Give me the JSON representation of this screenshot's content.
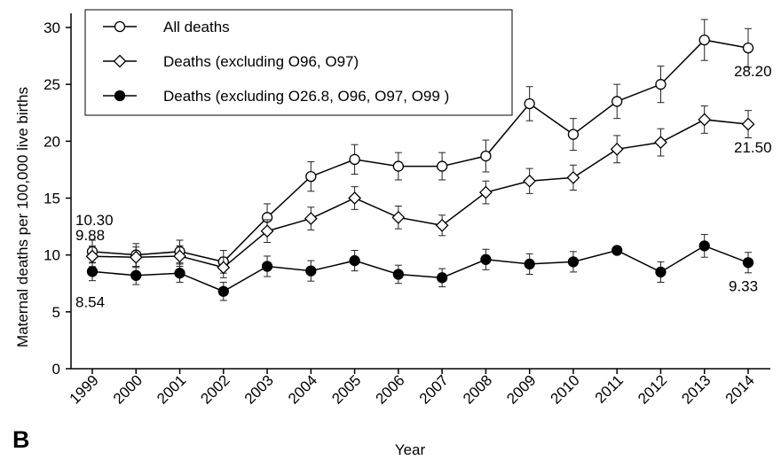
{
  "chart_data": {
    "type": "line",
    "panel_label": "B",
    "xlabel": "Year",
    "ylabel": "Maternal deaths per 100,000 live births",
    "ylim": [
      0,
      30
    ],
    "yticks": [
      "0",
      "5",
      "10",
      "15",
      "20",
      "25",
      "30"
    ],
    "categories": [
      "1999",
      "2000",
      "2001",
      "2002",
      "2003",
      "2004",
      "2005",
      "2006",
      "2007",
      "2008",
      "2009",
      "2010",
      "2011",
      "2012",
      "2013",
      "2014"
    ],
    "legend_position": "top-left",
    "grid": false,
    "series": [
      {
        "name": "All deaths",
        "marker": "open-circle",
        "values": [
          10.3,
          10.0,
          10.3,
          9.4,
          13.3,
          16.9,
          18.4,
          17.8,
          17.8,
          18.7,
          23.3,
          20.6,
          23.5,
          25.0,
          28.9,
          28.2
        ],
        "error": [
          1.0,
          1.0,
          1.0,
          1.0,
          1.2,
          1.3,
          1.3,
          1.2,
          1.2,
          1.4,
          1.5,
          1.4,
          1.5,
          1.6,
          1.8,
          1.7
        ]
      },
      {
        "name": "Deaths (excluding O96, O97)",
        "marker": "open-diamond",
        "values": [
          9.88,
          9.8,
          9.9,
          8.9,
          12.1,
          13.2,
          15.0,
          13.3,
          12.6,
          15.5,
          16.5,
          16.8,
          19.3,
          19.9,
          21.9,
          21.5
        ],
        "error": [
          0.9,
          0.9,
          0.9,
          0.9,
          1.0,
          1.0,
          1.0,
          1.0,
          0.9,
          1.0,
          1.1,
          1.1,
          1.2,
          1.2,
          1.2,
          1.2
        ]
      },
      {
        "name": "Deaths (excluding O26.8, O96, O97, O99 )",
        "marker": "filled-circle",
        "values": [
          8.54,
          8.2,
          8.4,
          6.8,
          9.0,
          8.6,
          9.5,
          8.3,
          8.0,
          9.6,
          9.2,
          9.4,
          10.4,
          8.5,
          10.8,
          9.33
        ],
        "error": [
          0.8,
          0.8,
          0.8,
          0.8,
          0.9,
          0.9,
          0.9,
          0.8,
          0.8,
          0.9,
          0.9,
          0.9,
          0.0,
          0.9,
          1.0,
          0.9
        ]
      }
    ],
    "annotations": [
      {
        "text": "10.30",
        "series": 0,
        "index": 0,
        "anchor": "above-left"
      },
      {
        "text": "9.88",
        "series": 1,
        "index": 0,
        "anchor": "above-left"
      },
      {
        "text": "8.54",
        "series": 2,
        "index": 0,
        "anchor": "below-left"
      },
      {
        "text": "28.20",
        "series": 0,
        "index": 15,
        "anchor": "below"
      },
      {
        "text": "21.50",
        "series": 1,
        "index": 15,
        "anchor": "below"
      },
      {
        "text": "9.33",
        "series": 2,
        "index": 15,
        "anchor": "below"
      }
    ]
  }
}
